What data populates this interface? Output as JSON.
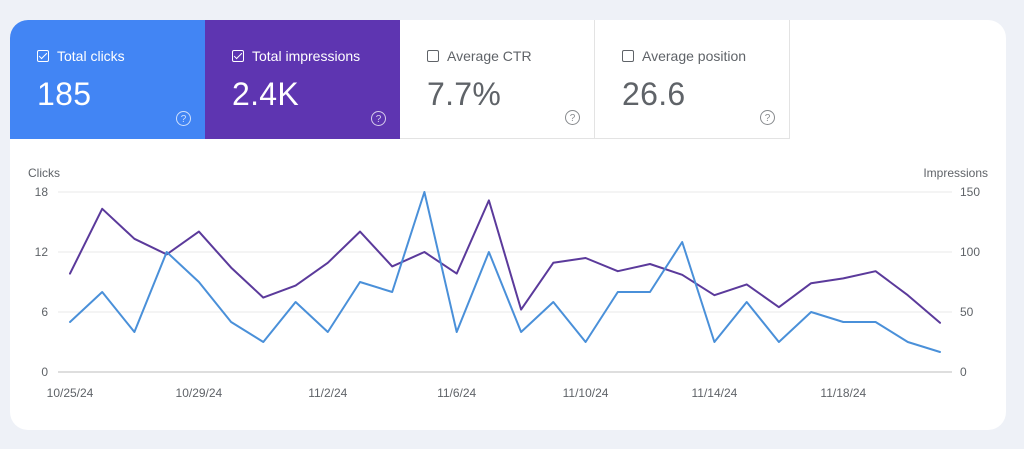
{
  "metrics": [
    {
      "label": "Total clicks",
      "value": "185",
      "checked": true
    },
    {
      "label": "Total impressions",
      "value": "2.4K",
      "checked": true
    },
    {
      "label": "Average CTR",
      "value": "7.7%",
      "checked": false
    },
    {
      "label": "Average position",
      "value": "26.6",
      "checked": false
    }
  ],
  "help_glyph": "?",
  "colors": {
    "clicks": "#4a90d9",
    "impressions": "#5b3a9b",
    "grid": "#e8e8e8",
    "baseline": "#bdbdbd"
  },
  "chart_data": {
    "type": "line",
    "x": [
      "10/25/24",
      "10/26/24",
      "10/27/24",
      "10/28/24",
      "10/29/24",
      "10/30/24",
      "10/31/24",
      "11/1/24",
      "11/2/24",
      "11/3/24",
      "11/4/24",
      "11/5/24",
      "11/6/24",
      "11/7/24",
      "11/8/24",
      "11/9/24",
      "11/10/24",
      "11/11/24",
      "11/12/24",
      "11/13/24",
      "11/14/24",
      "11/15/24",
      "11/16/24",
      "11/17/24",
      "11/18/24",
      "11/19/24",
      "11/20/24",
      "11/21/24"
    ],
    "x_tick_labels": [
      "10/25/24",
      "10/29/24",
      "11/2/24",
      "11/6/24",
      "11/10/24",
      "11/14/24",
      "11/18/24"
    ],
    "x_tick_indices": [
      0,
      4,
      8,
      12,
      16,
      20,
      24
    ],
    "y_left_label": "Clicks",
    "y_right_label": "Impressions",
    "y_left_ticks": [
      "0",
      "6",
      "12",
      "18"
    ],
    "y_right_ticks": [
      "0",
      "50",
      "100",
      "150"
    ],
    "y_left_range": [
      0,
      18
    ],
    "y_right_range": [
      0,
      150
    ],
    "series": [
      {
        "name": "Clicks",
        "axis": "left",
        "values": [
          5,
          8,
          4,
          12,
          9,
          5,
          3,
          7,
          4,
          9,
          8,
          18,
          4,
          12,
          4,
          7,
          3,
          8,
          8,
          13,
          3,
          7,
          3,
          6,
          5,
          5,
          3,
          2
        ]
      },
      {
        "name": "Impressions",
        "axis": "right",
        "values": [
          82,
          136,
          111,
          98,
          117,
          87,
          62,
          72,
          91,
          117,
          88,
          100,
          82,
          143,
          52,
          91,
          95,
          84,
          90,
          81,
          64,
          73,
          54,
          74,
          78,
          84,
          64,
          41
        ]
      }
    ]
  }
}
